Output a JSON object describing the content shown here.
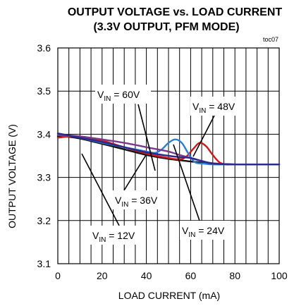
{
  "chart_data": {
    "type": "line",
    "title": "OUTPUT VOLTAGE vs. LOAD CURRENT",
    "subtitle": "(3.3V OUTPUT, PFM MODE)",
    "figure_id": "toc07",
    "xlabel": "LOAD CURRENT  (mA)",
    "ylabel": "OUTPUT VOLTAGE (V)",
    "xlim": [
      0,
      100
    ],
    "ylim": [
      3.1,
      3.6
    ],
    "xticks": [
      "0",
      "20",
      "40",
      "60",
      "80",
      "100"
    ],
    "yticks": [
      "3.1",
      "3.2",
      "3.3",
      "3.4",
      "3.5",
      "3.6"
    ],
    "grid": true,
    "series": [
      {
        "name": "VIN = 12V",
        "color": "#111111",
        "x": [
          0,
          5,
          10,
          20,
          30,
          40,
          50,
          60,
          70,
          80,
          100
        ],
        "y": [
          3.395,
          3.394,
          3.39,
          3.378,
          3.365,
          3.352,
          3.343,
          3.337,
          3.332,
          3.33,
          3.33
        ]
      },
      {
        "name": "VIN = 24V",
        "color": "#cc1a1a",
        "x": [
          0,
          5,
          10,
          20,
          30,
          40,
          50,
          55,
          58,
          61,
          64,
          67,
          70,
          73,
          76,
          80,
          100
        ],
        "y": [
          3.392,
          3.395,
          3.395,
          3.385,
          3.37,
          3.355,
          3.345,
          3.342,
          3.348,
          3.365,
          3.38,
          3.372,
          3.352,
          3.335,
          3.33,
          3.33,
          3.33
        ]
      },
      {
        "name": "VIN = 36V",
        "color": "#2a7fd4",
        "x": [
          0,
          5,
          10,
          20,
          30,
          40,
          44,
          47,
          50,
          53,
          56,
          59,
          62,
          66,
          70,
          80,
          100
        ],
        "y": [
          3.398,
          3.396,
          3.392,
          3.38,
          3.37,
          3.36,
          3.357,
          3.365,
          3.38,
          3.388,
          3.38,
          3.355,
          3.335,
          3.332,
          3.33,
          3.33,
          3.33
        ]
      },
      {
        "name": "VIN = 48V",
        "color": "#7a3a8c",
        "x": [
          0,
          5,
          10,
          20,
          30,
          40,
          45,
          50,
          55,
          60,
          65,
          70,
          80,
          100
        ],
        "y": [
          3.398,
          3.397,
          3.395,
          3.388,
          3.38,
          3.37,
          3.365,
          3.36,
          3.352,
          3.345,
          3.338,
          3.333,
          3.33,
          3.33
        ]
      },
      {
        "name": "VIN = 60V",
        "color": "#2a2a8c",
        "x": [
          0,
          5,
          10,
          20,
          30,
          40,
          50,
          55,
          60,
          65,
          70,
          80,
          100
        ],
        "y": [
          3.402,
          3.397,
          3.392,
          3.382,
          3.37,
          3.358,
          3.35,
          3.347,
          3.345,
          3.338,
          3.332,
          3.33,
          3.33
        ]
      }
    ],
    "annotations": [
      {
        "main": "V",
        "sub": "IN",
        "rest": " = 60V"
      },
      {
        "main": "V",
        "sub": "IN",
        "rest": " = 48V"
      },
      {
        "main": "V",
        "sub": "IN",
        "rest": " = 36V"
      },
      {
        "main": "V",
        "sub": "IN",
        "rest": " = 24V"
      },
      {
        "main": "V",
        "sub": "IN",
        "rest": " = 12V"
      }
    ]
  }
}
